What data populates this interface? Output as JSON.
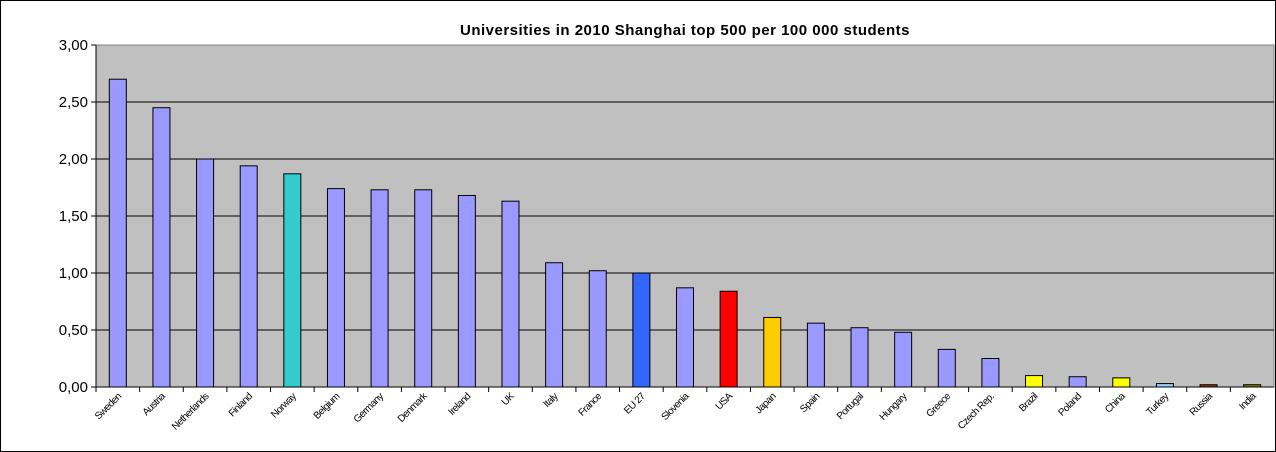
{
  "chart_data": {
    "type": "bar",
    "title": "Universities in 2010 Shanghai top 500 per 100 000 students",
    "xlabel": "",
    "ylabel": "",
    "ylim": [
      0,
      3
    ],
    "yticks": [
      "0,00",
      "0,50",
      "1,00",
      "1,50",
      "2,00",
      "2,50",
      "3,00"
    ],
    "grid": true,
    "categories": [
      "Sweden",
      "Austria",
      "Netherlands",
      "Finland",
      "Norway",
      "Belgium",
      "Germany",
      "Denmark",
      "Ireland",
      "UK",
      "Italy",
      "France",
      "EU 27",
      "Slovenia",
      "USA",
      "Japan",
      "Spain",
      "Portugal",
      "Hungary",
      "Greece",
      "Czech Rep.",
      "Brazil",
      "Poland",
      "China",
      "Turkey",
      "Russia",
      "India"
    ],
    "values": [
      2.7,
      2.45,
      2.0,
      1.94,
      1.87,
      1.74,
      1.73,
      1.73,
      1.68,
      1.63,
      1.09,
      1.02,
      1.0,
      0.87,
      0.84,
      0.61,
      0.56,
      0.52,
      0.48,
      0.33,
      0.25,
      0.1,
      0.09,
      0.08,
      0.03,
      0.02,
      0.02
    ],
    "colors": [
      "#9999ff",
      "#9999ff",
      "#9999ff",
      "#9999ff",
      "#33cccc",
      "#9999ff",
      "#9999ff",
      "#9999ff",
      "#9999ff",
      "#9999ff",
      "#9999ff",
      "#9999ff",
      "#3366ff",
      "#9999ff",
      "#ff0000",
      "#ffcc00",
      "#9999ff",
      "#9999ff",
      "#9999ff",
      "#9999ff",
      "#9999ff",
      "#ffff00",
      "#9999ff",
      "#ffff00",
      "#99ccff",
      "#993300",
      "#808000"
    ],
    "plot_background": "#c0c0c0"
  }
}
